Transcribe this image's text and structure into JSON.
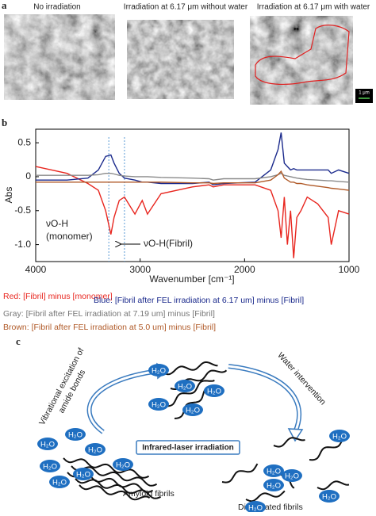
{
  "panel_labels": [
    "a",
    "b",
    "c"
  ],
  "panel_a": {
    "images": [
      {
        "title": "No irradiation"
      },
      {
        "title": "Irradiation at 6.17 μm without water"
      },
      {
        "title": "Irradiation at 6.17 μm with water"
      }
    ],
    "scale_bar": "1 μm"
  },
  "chart_data": {
    "type": "line",
    "ylabel": "Abs",
    "xlabel": "Wavenumber [cm⁻¹]",
    "x": [
      4000,
      3700,
      3500,
      3400,
      3330,
      3280,
      3250,
      3200,
      3150,
      3050,
      2980,
      2930,
      2800,
      2500,
      2340,
      2300,
      2200,
      1900,
      1750,
      1680,
      1650,
      1620,
      1590,
      1560,
      1530,
      1500,
      1460,
      1400,
      1300,
      1200,
      1170,
      1100,
      1000
    ],
    "xlim": [
      4000,
      1000
    ],
    "xticks": [
      4000,
      3000,
      2000,
      1000
    ],
    "ylim": [
      -1.25,
      0.7
    ],
    "yticks": [
      0.5,
      0,
      -0.5,
      {
        "value": -1,
        "label": "-1.0"
      }
    ],
    "guide_lines": [
      3300,
      3150
    ],
    "series": [
      {
        "name": "Red: [Fibril] minus [monomer]",
        "color": "#e8261f",
        "values": [
          0.15,
          0.05,
          -0.1,
          -0.2,
          -0.5,
          -0.85,
          -0.6,
          -0.35,
          -0.3,
          -0.55,
          -0.35,
          -0.55,
          -0.25,
          -0.15,
          -0.12,
          -0.15,
          -0.12,
          -0.12,
          -0.2,
          -0.5,
          -0.9,
          -0.3,
          -1.0,
          -0.5,
          -1.2,
          -0.6,
          -0.5,
          -0.3,
          -0.4,
          -0.6,
          -1.0,
          -0.5,
          -0.55
        ]
      },
      {
        "name": "Blue: [Fibril after FEL irradiation at 6.17 um] minus [Fibril]",
        "color": "#1b2a8c",
        "values": [
          -0.05,
          -0.05,
          -0.02,
          0.1,
          0.3,
          0.32,
          0.2,
          0.05,
          -0.02,
          -0.05,
          -0.08,
          -0.08,
          -0.1,
          -0.1,
          -0.08,
          -0.12,
          -0.1,
          -0.08,
          0.1,
          0.4,
          0.65,
          0.2,
          0.15,
          0.1,
          0.12,
          0.1,
          0.1,
          0.1,
          0.1,
          0.1,
          0.05,
          0.1,
          0.05
        ]
      },
      {
        "name": "Gray: [Fibril after FEL irradiation at 7.19 um] minus [Fibril]",
        "color": "#8a8a8a",
        "values": [
          0.02,
          0.02,
          0.02,
          0.03,
          0.05,
          0.05,
          0.04,
          0.02,
          0.01,
          0,
          0,
          0,
          -0.01,
          -0.02,
          -0.03,
          -0.05,
          -0.03,
          -0.03,
          0,
          0.03,
          0.05,
          0.02,
          0.01,
          0.0,
          -0.01,
          -0.02,
          -0.03,
          -0.04,
          -0.05,
          -0.06,
          -0.06,
          -0.07,
          -0.08
        ]
      },
      {
        "name": "Brown: [Fibril after FEL irradiation at 5.0 um] minus [Fibril]",
        "color": "#b05a28",
        "values": [
          -0.08,
          -0.08,
          -0.08,
          -0.08,
          -0.08,
          -0.08,
          -0.08,
          -0.08,
          -0.08,
          -0.08,
          -0.08,
          -0.08,
          -0.08,
          -0.09,
          -0.09,
          -0.1,
          -0.09,
          -0.09,
          -0.05,
          0.03,
          0.08,
          -0.02,
          -0.05,
          -0.08,
          -0.08,
          -0.1,
          -0.1,
          -0.12,
          -0.14,
          -0.16,
          -0.17,
          -0.18,
          -0.2
        ]
      }
    ],
    "annotations": [
      "νO-H",
      "(monomer)",
      "νO-H(Fibril)"
    ]
  },
  "panel_c": {
    "arrow_left": [
      "Vibrational excitation of",
      "amide bonds"
    ],
    "arrow_right": "Water intervention",
    "center": "Infrared-laser irradiation",
    "left_label": "Amyloid fibrils",
    "right_label": "Dissociated fibrils",
    "water": "H₂O"
  }
}
